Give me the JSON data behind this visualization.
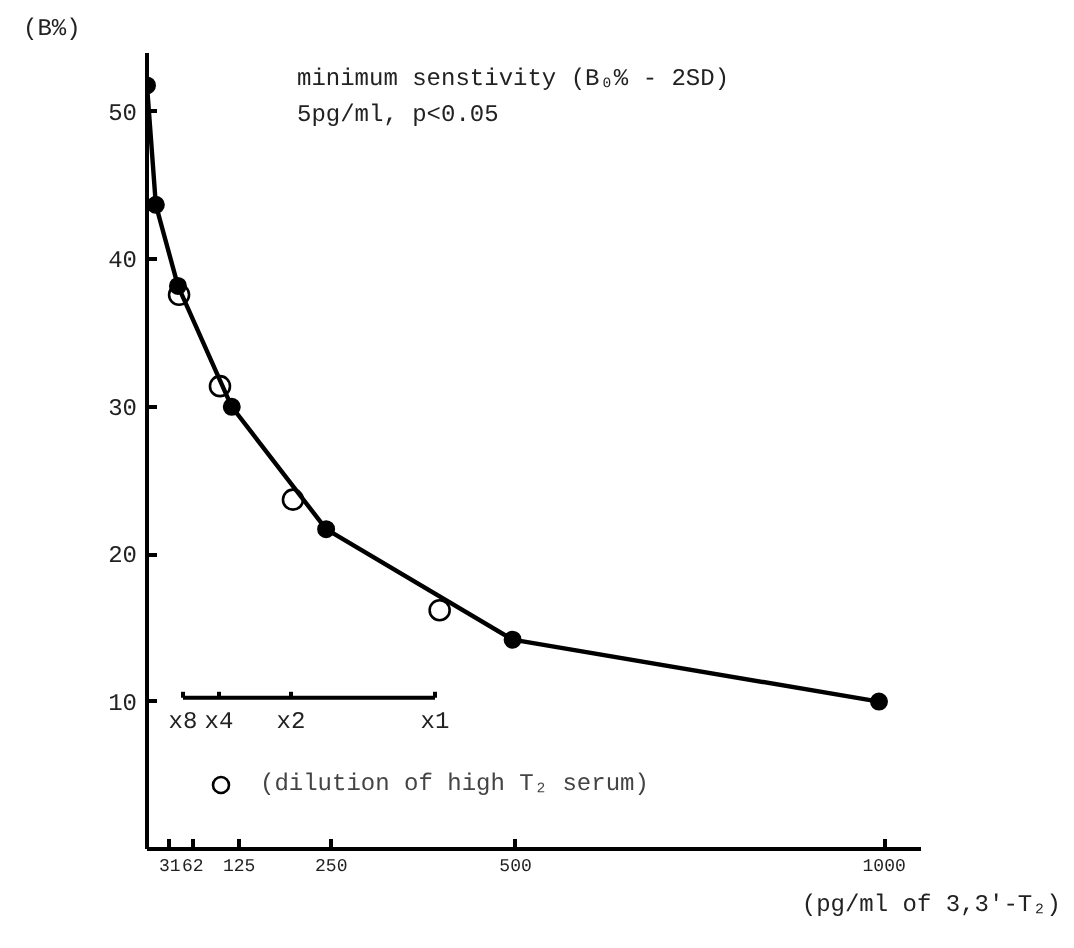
{
  "chart_data": {
    "type": "line",
    "xlabel": "(pg/ml of 3,3'-T₂)",
    "ylabel": "(B%)",
    "annotations": [
      "minimum senstivity (B₀% - 2SD)",
      "5pg/ml, p<0.05",
      "x8",
      "x4",
      "x2",
      "x1"
    ],
    "xlim": [
      0,
      1050
    ],
    "ylim": [
      0,
      54
    ],
    "xticks": [
      31,
      62,
      125,
      250,
      500,
      1000
    ],
    "yticks": [
      10,
      20,
      30,
      40,
      50
    ],
    "grid": false,
    "legend": "bottom left",
    "marker": "circle",
    "line_style": "solid",
    "series": [
      {
        "color": "#000000",
        "x": [
          0,
          12,
          42,
          115,
          243,
          496,
          993
        ],
        "values": [
          51.8,
          43.7,
          38.2,
          30,
          21.7,
          14.2,
          10
        ]
      },
      {
        "type": "scatter",
        "name": "(dilution of high T₂ serum)",
        "color": "#000000",
        "x": [
          43.5,
          99,
          198,
          397
        ],
        "values": [
          37.6,
          31.4,
          23.7,
          16.2
        ]
      }
    ]
  }
}
